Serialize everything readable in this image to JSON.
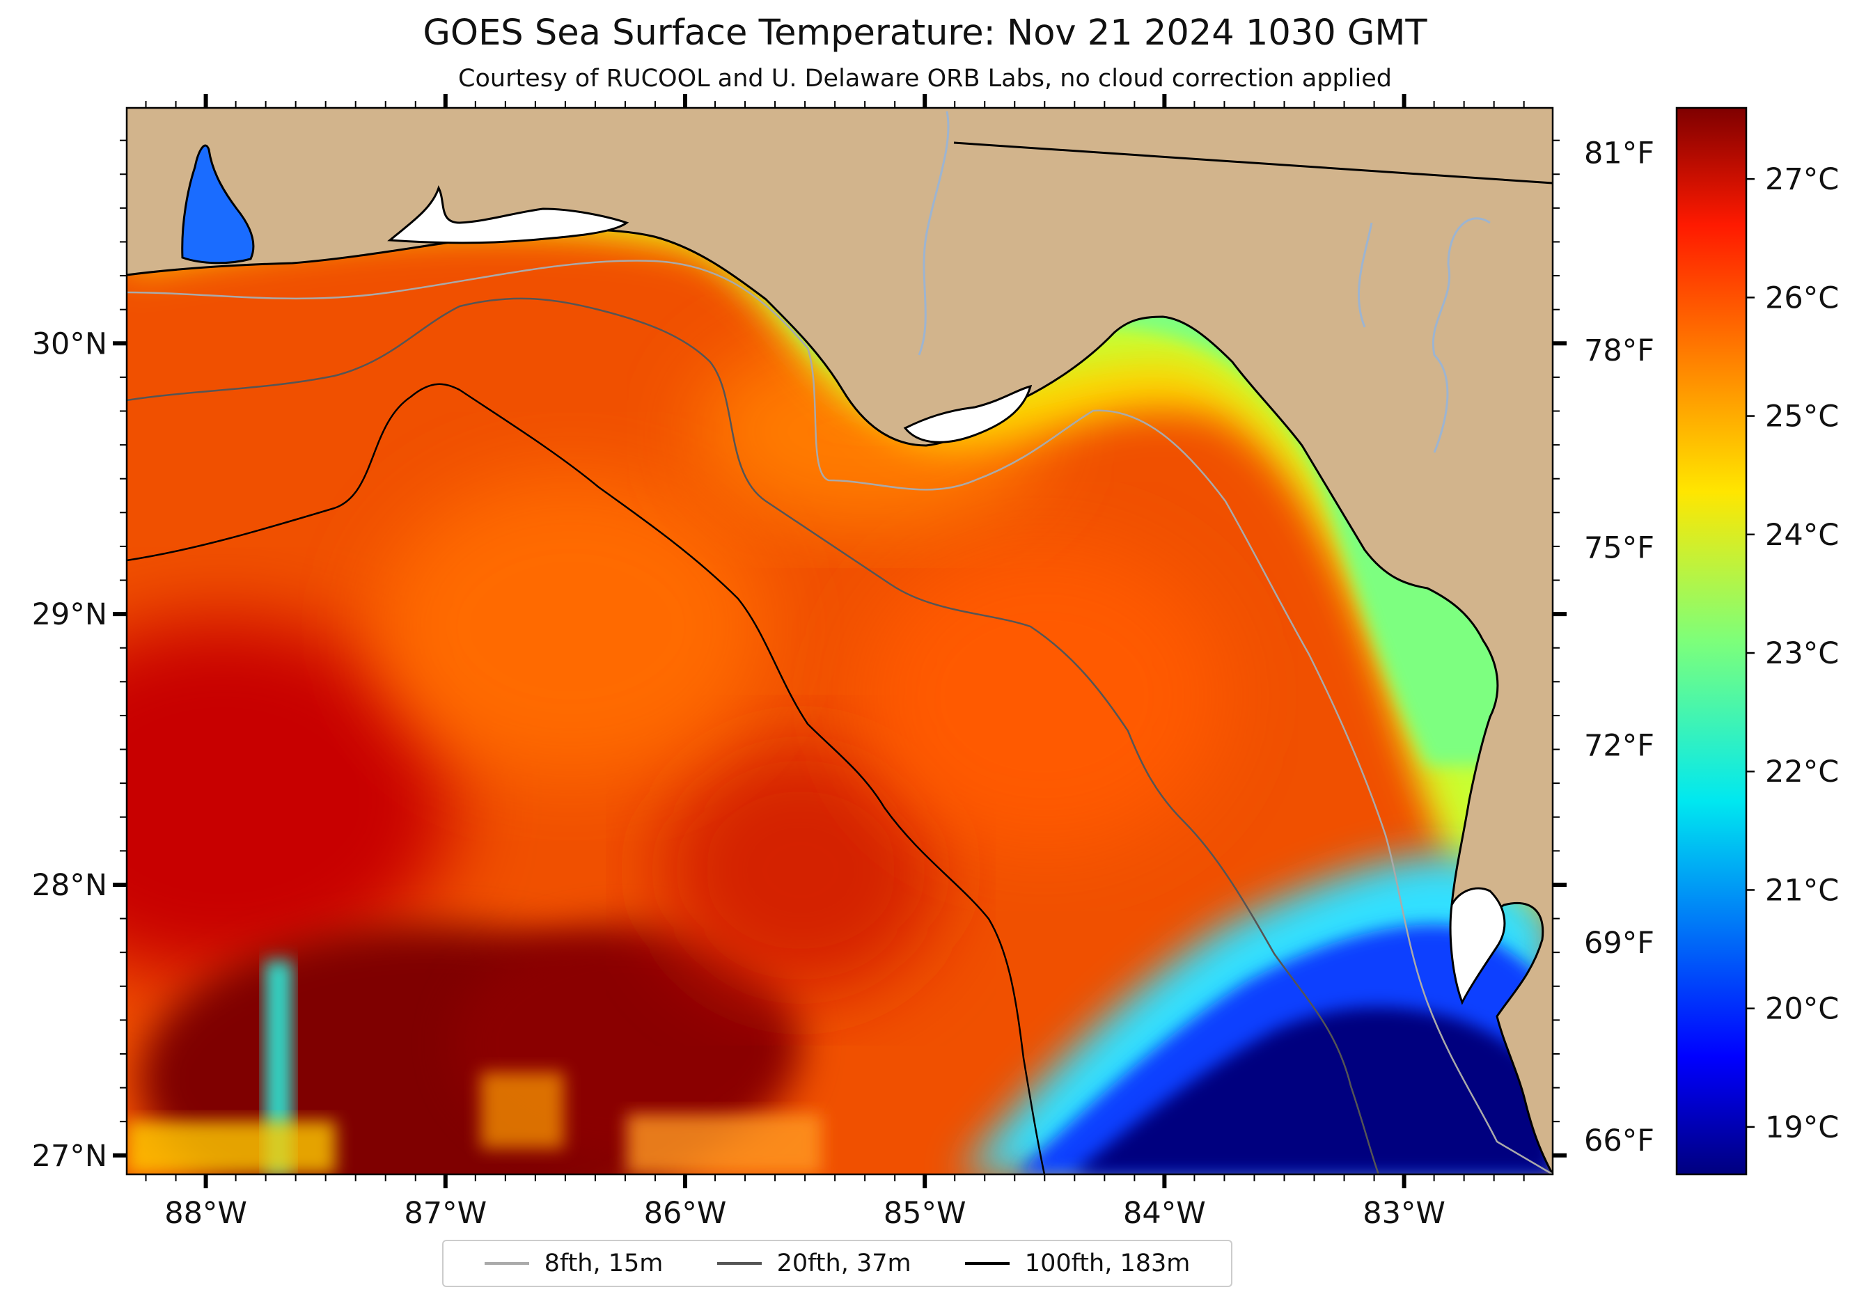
{
  "title": "GOES Sea Surface Temperature: Nov 21 2024 1030 GMT",
  "subtitle": "Courtesy of RUCOOL and U. Delaware ORB Labs, no cloud correction applied",
  "map": {
    "lon_range": [
      -88.33,
      -82.38
    ],
    "lat_range": [
      26.93,
      30.87
    ],
    "lon_ticks": [
      {
        "value": -88,
        "label": "88°W"
      },
      {
        "value": -87,
        "label": "87°W"
      },
      {
        "value": -86,
        "label": "86°W"
      },
      {
        "value": -85,
        "label": "85°W"
      },
      {
        "value": -84,
        "label": "84°W"
      },
      {
        "value": -83,
        "label": "83°W"
      }
    ],
    "lat_ticks": [
      {
        "value": 27,
        "label": "27°N"
      },
      {
        "value": 28,
        "label": "28°N"
      },
      {
        "value": 29,
        "label": "29°N"
      },
      {
        "value": 30,
        "label": "30°N"
      }
    ],
    "land_color": "#d2b48c",
    "coast_color": "#000000",
    "river_color": "#9db4d0"
  },
  "fahrenheit_ticks": [
    {
      "value": 66,
      "label": "66°F"
    },
    {
      "value": 69,
      "label": "69°F"
    },
    {
      "value": 72,
      "label": "72°F"
    },
    {
      "value": 75,
      "label": "75°F"
    },
    {
      "value": 78,
      "label": "78°F"
    },
    {
      "value": 81,
      "label": "81°F"
    }
  ],
  "colorbar": {
    "colormap": "jet",
    "range_c": [
      18.6,
      27.6
    ],
    "ticks": [
      {
        "value": 19,
        "label": "19°C"
      },
      {
        "value": 20,
        "label": "20°C"
      },
      {
        "value": 21,
        "label": "21°C"
      },
      {
        "value": 22,
        "label": "22°C"
      },
      {
        "value": 23,
        "label": "23°C"
      },
      {
        "value": 24,
        "label": "24°C"
      },
      {
        "value": 25,
        "label": "25°C"
      },
      {
        "value": 26,
        "label": "26°C"
      },
      {
        "value": 27,
        "label": "27°C"
      }
    ]
  },
  "legend": [
    {
      "label": "8fth, 15m",
      "color": "#aaaaaa"
    },
    {
      "label": "20fth, 37m",
      "color": "#555555"
    },
    {
      "label": "100fth, 183m",
      "color": "#000000"
    }
  ]
}
